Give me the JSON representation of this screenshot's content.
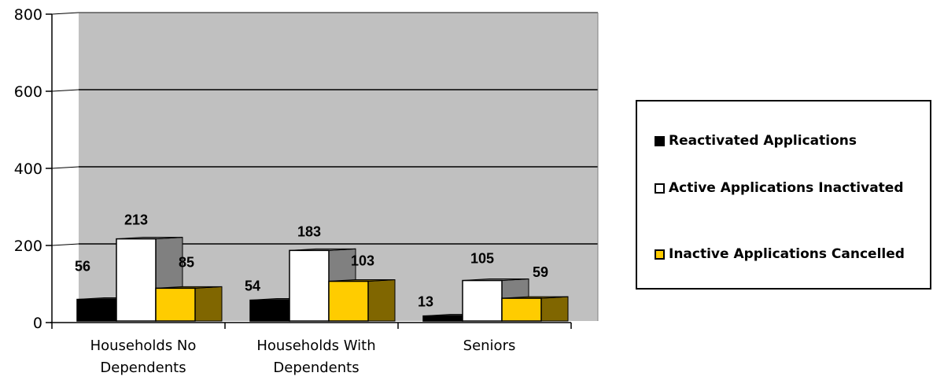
{
  "chart_data": {
    "type": "bar",
    "categories": [
      "Households No Dependents",
      "Households With Dependents",
      "Seniors"
    ],
    "category_lines": [
      [
        "Households No",
        "Dependents"
      ],
      [
        "Households With",
        "Dependents"
      ],
      [
        "Seniors"
      ]
    ],
    "series": [
      {
        "name": "Reactivated Applications",
        "values": [
          56,
          54,
          13
        ],
        "color": "#000000",
        "side_color": "#333333"
      },
      {
        "name": "Active Applications Inactivated",
        "values": [
          213,
          183,
          105
        ],
        "color": "#ffffff",
        "side_color": "#808080"
      },
      {
        "name": "Inactive Applications Cancelled",
        "values": [
          85,
          103,
          59
        ],
        "color": "#ffcc00",
        "side_color": "#806600"
      }
    ],
    "y_ticks": [
      "0",
      "200",
      "400",
      "600",
      "800"
    ],
    "ylim": [
      0,
      800
    ],
    "grid": true,
    "legend_position": "right",
    "plot_background": "#c0c0c0"
  }
}
